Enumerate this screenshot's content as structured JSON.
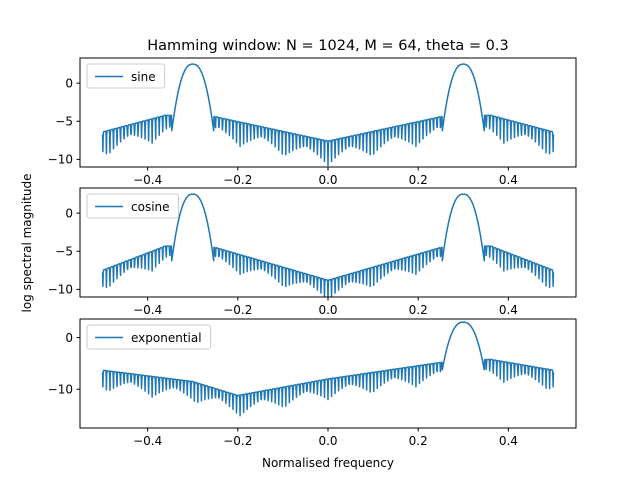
{
  "chart_data": {
    "type": "line",
    "title": "Hamming window: N = 1024, M = 64, theta = 0.3",
    "xlabel": "Normalised frequency",
    "ylabel": "log spectral magnitude",
    "line_color": "#1f77b4",
    "grid": false,
    "legend_placement": "upper-left",
    "subplots": [
      {
        "series": [
          {
            "name": "sine"
          }
        ],
        "xlim": [
          -0.55,
          0.55
        ],
        "ylim": [
          -11,
          3.3
        ],
        "xticks": [
          -0.4,
          -0.2,
          0.0,
          0.2,
          0.4
        ],
        "xtick_labels": [
          "−0.4",
          "−0.2",
          "0.0",
          "0.2",
          "0.4"
        ],
        "yticks": [
          0,
          -5,
          -10
        ],
        "ytick_labels": [
          "0",
          "−5",
          "−10"
        ],
        "peaks": [
          {
            "center": -0.3,
            "height": 2.5,
            "halfwidth": 0.047
          },
          {
            "center": 0.3,
            "height": 2.5,
            "halfwidth": 0.047
          }
        ],
        "sidelobe_envelope": {
          "x": [
            -0.5,
            -0.36,
            -0.25,
            0.0,
            0.25,
            0.36,
            0.5
          ],
          "y": [
            -6.4,
            -4.2,
            -4.4,
            -7.6,
            -4.4,
            -4.2,
            -6.4
          ]
        },
        "sidelobe_period": 0.0156,
        "null_depth": 3.2
      },
      {
        "series": [
          {
            "name": "cosine"
          }
        ],
        "xlim": [
          -0.55,
          0.55
        ],
        "ylim": [
          -11,
          3.3
        ],
        "xticks": [
          -0.4,
          -0.2,
          0.0,
          0.2,
          0.4
        ],
        "xtick_labels": [
          "−0.4",
          "−0.2",
          "0.0",
          "0.2",
          "0.4"
        ],
        "yticks": [
          0,
          -5,
          -10
        ],
        "ytick_labels": [
          "0",
          "−5",
          "−10"
        ],
        "peaks": [
          {
            "center": -0.3,
            "height": 2.5,
            "halfwidth": 0.047
          },
          {
            "center": 0.3,
            "height": 2.5,
            "halfwidth": 0.047
          }
        ],
        "sidelobe_envelope": {
          "x": [
            -0.5,
            -0.36,
            -0.25,
            0.0,
            0.25,
            0.36,
            0.5
          ],
          "y": [
            -7.5,
            -4.3,
            -4.5,
            -8.8,
            -4.5,
            -4.3,
            -7.5
          ]
        },
        "sidelobe_period": 0.0156,
        "null_depth": 2.6
      },
      {
        "series": [
          {
            "name": "exponential"
          }
        ],
        "xlim": [
          -0.55,
          0.55
        ],
        "ylim": [
          -17.5,
          3.6
        ],
        "xticks": [
          -0.4,
          -0.2,
          0.0,
          0.2,
          0.4
        ],
        "xtick_labels": [
          "−0.4",
          "−0.2",
          "0.0",
          "0.2",
          "0.4"
        ],
        "yticks": [
          0,
          -10
        ],
        "ytick_labels": [
          "0",
          "−10"
        ],
        "peaks": [
          {
            "center": 0.3,
            "height": 3.0,
            "halfwidth": 0.047
          }
        ],
        "sidelobe_envelope": {
          "x": [
            -0.5,
            -0.3,
            -0.2,
            0.0,
            0.25,
            0.36,
            0.5
          ],
          "y": [
            -6.3,
            -8.5,
            -11.2,
            -8.0,
            -4.8,
            -4.2,
            -6.3
          ]
        },
        "sidelobe_period": 0.0156,
        "null_depth": 4.0
      }
    ]
  }
}
